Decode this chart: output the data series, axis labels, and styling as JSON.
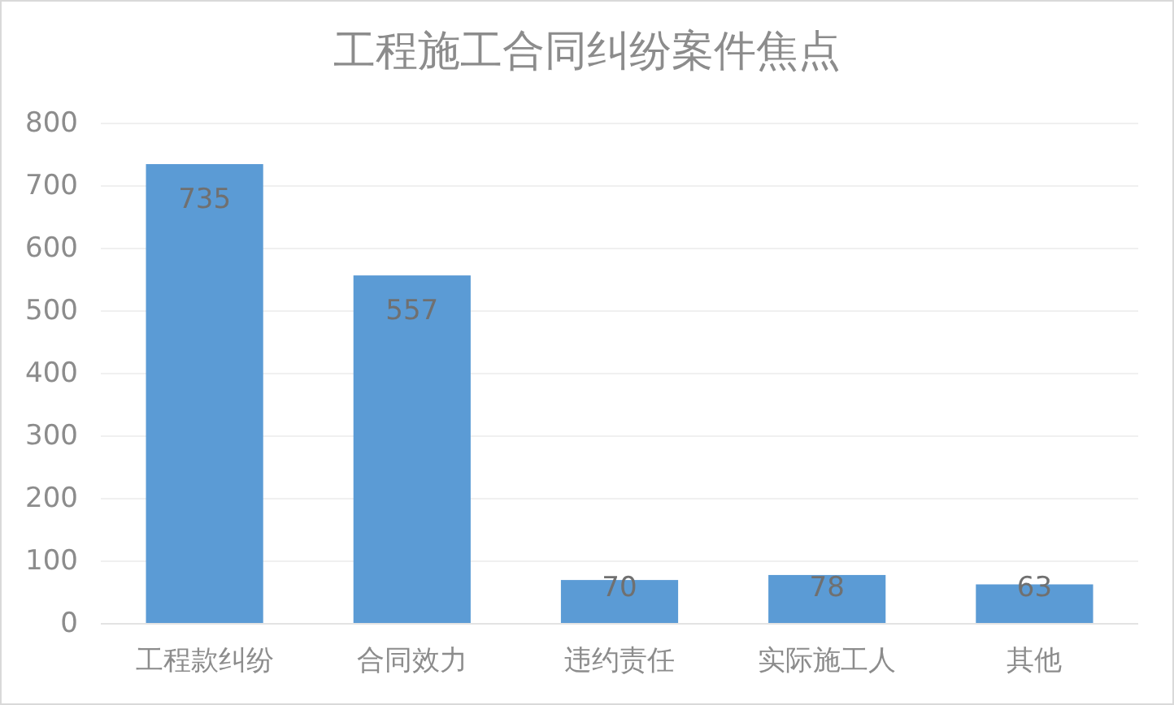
{
  "chart_data": {
    "type": "bar",
    "title": "工程施工合同纠纷案件焦点",
    "categories": [
      "工程款纠纷",
      "合同效力",
      "违约责任",
      "实际施工人",
      "其他"
    ],
    "values": [
      735,
      557,
      70,
      78,
      63
    ],
    "color": "#5b9bd5",
    "ylim": [
      0,
      800
    ],
    "yticks": [
      0,
      100,
      200,
      300,
      400,
      500,
      600,
      700,
      800
    ],
    "grid": "y",
    "data_labels": true
  }
}
